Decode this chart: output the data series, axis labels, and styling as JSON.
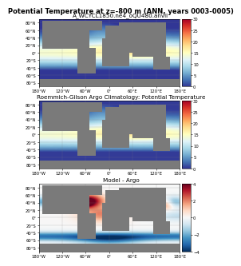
{
  "fig_title": "Potential Temperature at z=-800 m (ANN, years 0003-0005)",
  "panel1_title": "A_WCYCL1850.ne4_oQU480.anvil",
  "panel2_title": "Roemmich-Gilson Argo Climatology: Potential Temperature",
  "panel3_title": "Model - Argo",
  "cmap1": "RdYlBu_r",
  "cmap3": "RdBu_r",
  "vmin1": 0,
  "vmax1": 30,
  "vmin3": -4,
  "vmax3": 4,
  "land_color": "#7a7a7a",
  "ocean_bg_cold": "#053061",
  "ocean_bg_warm": "#d6604d",
  "fig_bg": "#ffffff",
  "lon_ticks": [
    -180,
    -120,
    -60,
    0,
    60,
    120,
    180
  ],
  "lon_labels": [
    "180°W",
    "120°W",
    "60°W",
    "0°",
    "60°E",
    "120°E",
    "180°E"
  ],
  "lat_ticks": [
    -80,
    -60,
    -40,
    -20,
    0,
    20,
    40,
    60,
    80
  ],
  "colorbar_ticks1": [
    0,
    5,
    10,
    15,
    20,
    25,
    30
  ],
  "colorbar_ticks3": [
    -4,
    -2,
    0,
    2,
    4
  ],
  "title_fontsize": 6.0,
  "panel_title_fontsize": 5.2,
  "tick_fontsize": 3.8,
  "cbar_fontsize": 3.8
}
